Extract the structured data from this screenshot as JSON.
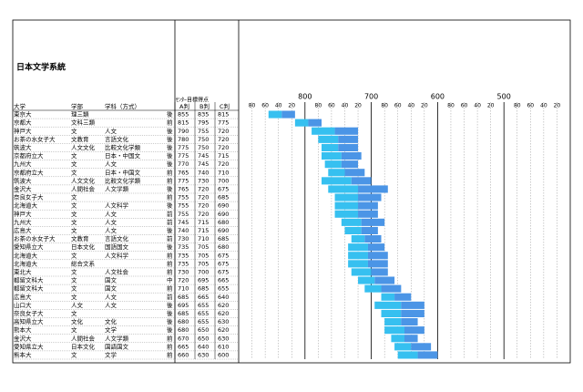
{
  "header": {
    "title": "日本文学系統"
  },
  "columns": {
    "university": "大学",
    "faculty": "学部",
    "department": "学科（方式）",
    "score_title": "ｾﾝﾀｰ目標得点",
    "a": "A判",
    "b": "B判",
    "c": "C判"
  },
  "axis": {
    "lim": [
      900,
      400
    ],
    "ticks": [
      {
        "value": 880,
        "label": "80"
      },
      {
        "value": 860,
        "label": "60"
      },
      {
        "value": 840,
        "label": "40"
      },
      {
        "value": 820,
        "label": "20"
      },
      {
        "value": 800,
        "label": "800"
      },
      {
        "value": 780,
        "label": "80"
      },
      {
        "value": 760,
        "label": "60"
      },
      {
        "value": 740,
        "label": "40"
      },
      {
        "value": 720,
        "label": "20"
      },
      {
        "value": 700,
        "label": "700"
      },
      {
        "value": 680,
        "label": "80"
      },
      {
        "value": 660,
        "label": "60"
      },
      {
        "value": 640,
        "label": "40"
      },
      {
        "value": 620,
        "label": "20"
      },
      {
        "value": 600,
        "label": "600"
      },
      {
        "value": 580,
        "label": "80"
      },
      {
        "value": 560,
        "label": "60"
      },
      {
        "value": 540,
        "label": "40"
      },
      {
        "value": 520,
        "label": "20"
      },
      {
        "value": 500,
        "label": "500"
      },
      {
        "value": 480,
        "label": "80"
      },
      {
        "value": 460,
        "label": "60"
      },
      {
        "value": 440,
        "label": "40"
      },
      {
        "value": 420,
        "label": "20"
      }
    ]
  },
  "table": {
    "rows": [
      [
        "東京大",
        "理三類",
        "",
        "後",
        855,
        835,
        815
      ],
      [
        "京都大",
        "文科三類",
        "",
        "前",
        815,
        795,
        775
      ],
      [
        "神戸大",
        "文",
        "人文",
        "後",
        790,
        755,
        720
      ],
      [
        "お茶の水女子大",
        "文教育",
        "言語文化",
        "後",
        780,
        750,
        720
      ],
      [
        "筑波大",
        "人文文化",
        "比較文化学類",
        "後",
        775,
        750,
        720
      ],
      [
        "京都府立大",
        "文",
        "日本・中国文",
        "後",
        775,
        745,
        715
      ],
      [
        "九州大",
        "文",
        "人文",
        "後",
        770,
        745,
        720
      ],
      [
        "京都府立大",
        "文",
        "日本・中国文",
        "前",
        765,
        740,
        710
      ],
      [
        "筑波大",
        "人文文化",
        "比較文化学類",
        "前",
        775,
        730,
        700
      ],
      [
        "金沢大",
        "人間社会",
        "人文学類",
        "後",
        765,
        720,
        675
      ],
      [
        "奈良女子大",
        "文",
        "",
        "前",
        755,
        720,
        685
      ],
      [
        "北海道大",
        "文",
        "人文科学",
        "後",
        755,
        720,
        690
      ],
      [
        "神戸大",
        "文",
        "人文",
        "前",
        755,
        720,
        690
      ],
      [
        "九州大",
        "文",
        "人文",
        "前",
        745,
        715,
        680
      ],
      [
        "広島大",
        "文",
        "人文",
        "後",
        740,
        715,
        690
      ],
      [
        "お茶の水女子大",
        "文教育",
        "言語文化",
        "前",
        730,
        710,
        685
      ],
      [
        "愛知県立大",
        "日本文化",
        "国語国文",
        "後",
        735,
        705,
        680
      ],
      [
        "北海道大",
        "文",
        "人文科学",
        "前",
        735,
        705,
        675
      ],
      [
        "北海道大",
        "総合文系",
        "",
        "前",
        735,
        705,
        675
      ],
      [
        "東北大",
        "文",
        "人文社会",
        "前",
        730,
        700,
        675
      ],
      [
        "都留文科大",
        "文",
        "国文",
        "中",
        720,
        695,
        665
      ],
      [
        "都留文科大",
        "文",
        "国文",
        "前",
        710,
        685,
        655
      ],
      [
        "広島大",
        "文",
        "人文",
        "前",
        685,
        665,
        640
      ],
      [
        "山口大",
        "人文",
        "人文",
        "後",
        695,
        655,
        620
      ],
      [
        "奈良女子大",
        "文",
        "",
        "後",
        685,
        655,
        620
      ],
      [
        "高知県立大",
        "文化",
        "文化",
        "後",
        680,
        655,
        630
      ],
      [
        "熊本大",
        "文",
        "文学",
        "後",
        680,
        650,
        620
      ],
      [
        "金沢大",
        "人間社会",
        "人文学類",
        "前",
        670,
        650,
        630
      ],
      [
        "愛知県立大",
        "日本文化",
        "国語国文",
        "前",
        665,
        640,
        610
      ],
      [
        "熊本大",
        "文",
        "文学",
        "前",
        660,
        630,
        600
      ]
    ]
  }
}
